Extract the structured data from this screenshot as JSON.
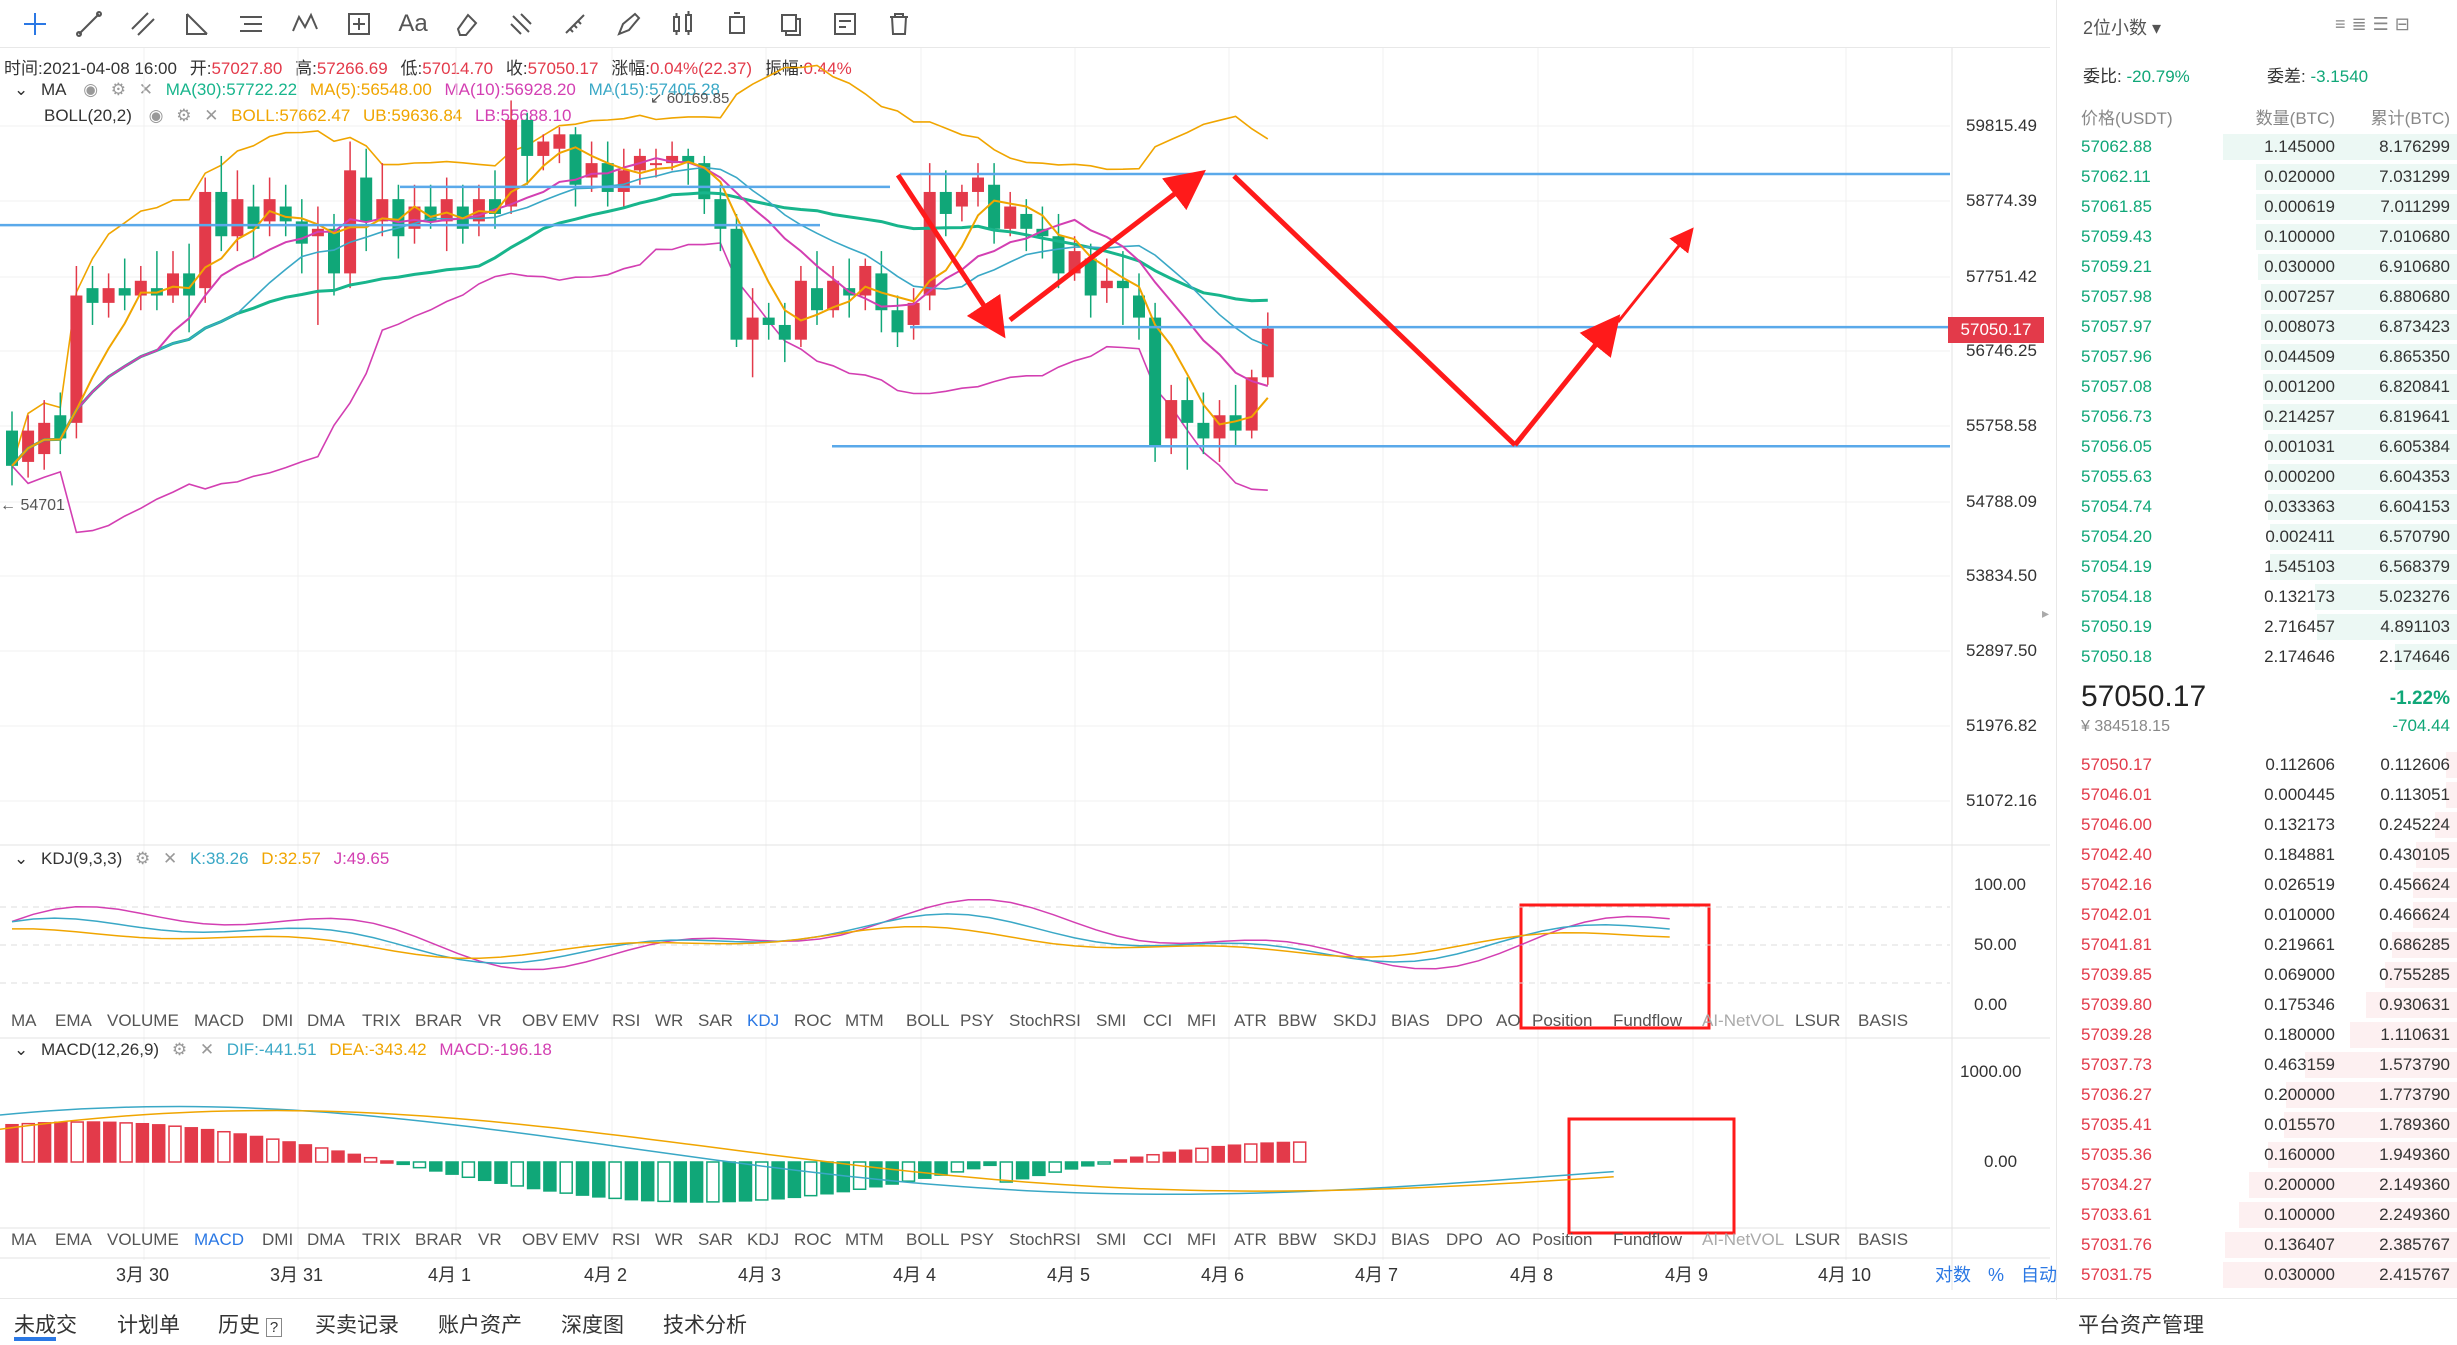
{
  "toolbar": {
    "icons": [
      "crosshair-icon",
      "line-icon",
      "parallel-line-icon",
      "angle-icon",
      "horizontal-lines-icon",
      "wave-icon",
      "measure-icon",
      "text-icon",
      "eraser-icon",
      "magnet-icon",
      "ruler-icon",
      "pen-icon",
      "candle-type-icon",
      "layer-icon",
      "copy-icon",
      "edit-icon",
      "trash-icon"
    ],
    "text_tool_label": "Aa"
  },
  "info": {
    "time_label": "时间:",
    "time": "2021-04-08 16:00",
    "open_label": "开:",
    "open": "57027.80",
    "high_label": "高:",
    "high": "57266.69",
    "low_label": "低:",
    "low": "57014.70",
    "close_label": "收:",
    "close": "57050.17",
    "change_label": "涨幅:",
    "change": "0.04%(22.37)",
    "amp_label": "振幅:",
    "amp": "0.44%"
  },
  "ma_legend": {
    "name": "MA",
    "ma30": "MA(30):57722.22",
    "ma5": "MA(5):56548.00",
    "ma10": "MA(10):56928.20",
    "ma15": "MA(15):57405.28"
  },
  "boll_legend": {
    "name": "BOLL(20,2)",
    "boll": "BOLL:57662.47",
    "ub": "UB:59636.84",
    "lb": "LB:55688.10"
  },
  "price_axis": [
    "59815.49",
    "58774.39",
    "57751.42",
    "56746.25",
    "55758.58",
    "54788.09",
    "53834.50",
    "52897.50",
    "51976.82",
    "51072.16"
  ],
  "current_price_tag": "57050.17",
  "high_marker": "60169.85",
  "low_marker": "54701",
  "kdj_legend": {
    "name": "KDJ(9,3,3)",
    "k": "K:38.26",
    "d": "D:32.57",
    "j": "J:49.65"
  },
  "kdj_axis": [
    "100.00",
    "50.00",
    "0.00"
  ],
  "macd_legend": {
    "name": "MACD(12,26,9)",
    "dif": "DIF:-441.51",
    "dea": "DEA:-343.42",
    "macd": "MACD:-196.18"
  },
  "macd_axis": [
    "1000.00",
    "0.00"
  ],
  "indicator_tabs": [
    "MA",
    "EMA",
    "VOLUME",
    "MACD",
    "DMI",
    "DMA",
    "TRIX",
    "BRAR",
    "VR",
    "OBV",
    "EMV",
    "RSI",
    "WR",
    "SAR",
    "KDJ",
    "ROC",
    "MTM",
    "BOLL",
    "PSY",
    "StochRSI",
    "SMI",
    "CCI",
    "MFI",
    "ATR",
    "BBW",
    "SKDJ",
    "BIAS",
    "DPO",
    "AO",
    "Position",
    "Fundflow",
    "AI-NetVOL",
    "LSUR",
    "BASIS"
  ],
  "date_axis": [
    "3月 30",
    "3月 31",
    "4月 1",
    "4月 2",
    "4月 3",
    "4月 4",
    "4月 5",
    "4月 6",
    "4月 7",
    "4月 8",
    "4月 9",
    "4月 10"
  ],
  "axis_options": {
    "log": "对数",
    "percent": "%",
    "auto": "自动"
  },
  "right_panel": {
    "precision": "2位小数",
    "ratio_label": "委比:",
    "ratio": "-20.79%",
    "diff_label": "委差:",
    "diff": "-3.1540",
    "headers": [
      "价格(USDT)",
      "数量(BTC)",
      "累计(BTC)"
    ],
    "bids": [
      [
        "57062.88",
        "1.145000",
        "8.176299"
      ],
      [
        "57062.11",
        "0.020000",
        "7.031299"
      ],
      [
        "57061.85",
        "0.000619",
        "7.011299"
      ],
      [
        "57059.43",
        "0.100000",
        "7.010680"
      ],
      [
        "57059.21",
        "0.030000",
        "6.910680"
      ],
      [
        "57057.98",
        "0.007257",
        "6.880680"
      ],
      [
        "57057.97",
        "0.008073",
        "6.873423"
      ],
      [
        "57057.96",
        "0.044509",
        "6.865350"
      ],
      [
        "57057.08",
        "0.001200",
        "6.820841"
      ],
      [
        "57056.73",
        "0.214257",
        "6.819641"
      ],
      [
        "57056.05",
        "0.001031",
        "6.605384"
      ],
      [
        "57055.63",
        "0.000200",
        "6.604353"
      ],
      [
        "57054.74",
        "0.033363",
        "6.604153"
      ],
      [
        "57054.20",
        "0.002411",
        "6.570790"
      ],
      [
        "57054.19",
        "1.545103",
        "6.568379"
      ],
      [
        "57054.18",
        "0.132173",
        "5.023276"
      ],
      [
        "57050.19",
        "2.716457",
        "4.891103"
      ],
      [
        "57050.18",
        "2.174646",
        "2.174646"
      ]
    ],
    "bid_depth": [
      1.0,
      0.86,
      0.86,
      0.86,
      0.85,
      0.84,
      0.84,
      0.84,
      0.83,
      0.83,
      0.81,
      0.81,
      0.81,
      0.8,
      0.8,
      0.61,
      0.6,
      0.27
    ],
    "last_price": "57050.17",
    "last_change": "-1.22%",
    "cny_price": "¥ 384518.15",
    "last_delta": "-704.44",
    "asks": [
      [
        "57050.17",
        "0.112606",
        "0.112606"
      ],
      [
        "57046.01",
        "0.000445",
        "0.113051"
      ],
      [
        "57046.00",
        "0.132173",
        "0.245224"
      ],
      [
        "57042.40",
        "0.184881",
        "0.430105"
      ],
      [
        "57042.16",
        "0.026519",
        "0.456624"
      ],
      [
        "57042.01",
        "0.010000",
        "0.466624"
      ],
      [
        "57041.81",
        "0.219661",
        "0.686285"
      ],
      [
        "57039.85",
        "0.069000",
        "0.755285"
      ],
      [
        "57039.80",
        "0.175346",
        "0.930631"
      ],
      [
        "57039.28",
        "0.180000",
        "1.110631"
      ],
      [
        "57037.73",
        "0.463159",
        "1.573790"
      ],
      [
        "57036.27",
        "0.200000",
        "1.773790"
      ],
      [
        "57035.41",
        "0.015570",
        "1.789360"
      ],
      [
        "57035.36",
        "0.160000",
        "1.949360"
      ],
      [
        "57034.27",
        "0.200000",
        "2.149360"
      ],
      [
        "57033.61",
        "0.100000",
        "2.249360"
      ],
      [
        "57031.76",
        "0.136407",
        "2.385767"
      ],
      [
        "57031.75",
        "0.030000",
        "2.415767"
      ]
    ],
    "ask_depth": [
      0.05,
      0.05,
      0.1,
      0.18,
      0.19,
      0.19,
      0.28,
      0.31,
      0.39,
      0.46,
      0.65,
      0.73,
      0.74,
      0.81,
      0.89,
      0.93,
      0.99,
      1.0
    ],
    "footer": "平台资产管理"
  },
  "bottom_tabs": [
    "未成交",
    "计划单",
    "历史",
    "买卖记录",
    "账户资产",
    "深度图",
    "技术分析"
  ],
  "colors": {
    "up": "#e33a4a",
    "down": "#10a778",
    "accent": "#2b78e4",
    "annotation": "#ff1a1a"
  }
}
